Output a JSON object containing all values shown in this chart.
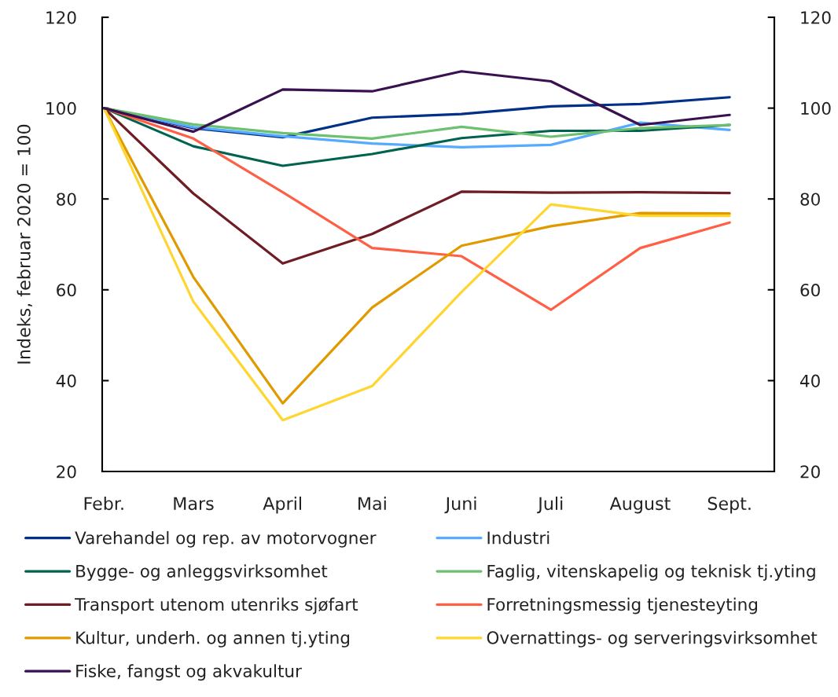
{
  "chart_data": {
    "type": "line",
    "ylabel": "Indeks, februar 2020 = 100",
    "categories": [
      "Febr.",
      "Mars",
      "April",
      "Mai",
      "Juni",
      "Juli",
      "August",
      "Sept."
    ],
    "series": [
      {
        "name": "Varehandel og rep. av motorvogner",
        "color": "#003087",
        "values": [
          100,
          95.6,
          93.6,
          97.9,
          98.7,
          100.4,
          100.9,
          102.4
        ]
      },
      {
        "name": "Industri",
        "color": "#56aaff",
        "values": [
          100,
          95.8,
          93.8,
          92.2,
          91.4,
          91.9,
          96.8,
          95.2
        ]
      },
      {
        "name": "Bygge- og anleggsvirksomhet",
        "color": "#00634f",
        "values": [
          100,
          91.6,
          87.3,
          89.9,
          93.4,
          95.0,
          95.0,
          96.3
        ]
      },
      {
        "name": "Faglig, vitenskapelig og teknisk tj.yting",
        "color": "#6cc070",
        "values": [
          100,
          96.4,
          94.5,
          93.3,
          95.9,
          93.7,
          95.6,
          96.3
        ]
      },
      {
        "name": "Transport utenom utenriks sjøfart",
        "color": "#6f1d24",
        "values": [
          100,
          81.2,
          65.8,
          72.3,
          81.6,
          81.4,
          81.5,
          81.3
        ]
      },
      {
        "name": "Forretningsmessig tjenesteyting",
        "color": "#ff5f45",
        "values": [
          100,
          93.3,
          81.5,
          69.2,
          67.4,
          55.6,
          69.2,
          74.8
        ]
      },
      {
        "name": "Kultur, underh. og annen tj.yting",
        "color": "#e09a00",
        "values": [
          100,
          62.8,
          35.0,
          56.1,
          69.7,
          74.0,
          76.9,
          76.8
        ]
      },
      {
        "name": "Overnattings- og serveringsvirksomhet",
        "color": "#ffd530",
        "values": [
          100,
          57.4,
          31.3,
          38.8,
          59.5,
          78.8,
          76.3,
          76.3
        ]
      },
      {
        "name": "Fiske, fangst og akvakultur",
        "color": "#3a1150",
        "values": [
          100,
          94.8,
          104.1,
          103.7,
          108.1,
          105.9,
          96.3,
          98.5
        ]
      }
    ],
    "ylim": [
      20,
      120
    ],
    "yticks": [
      20,
      40,
      60,
      80,
      100,
      120
    ],
    "y2lim": [
      20,
      120
    ],
    "y2ticks": [
      20,
      40,
      60,
      80,
      100,
      120
    ],
    "grid": false,
    "legend": "bottom",
    "line_style": "solid"
  }
}
